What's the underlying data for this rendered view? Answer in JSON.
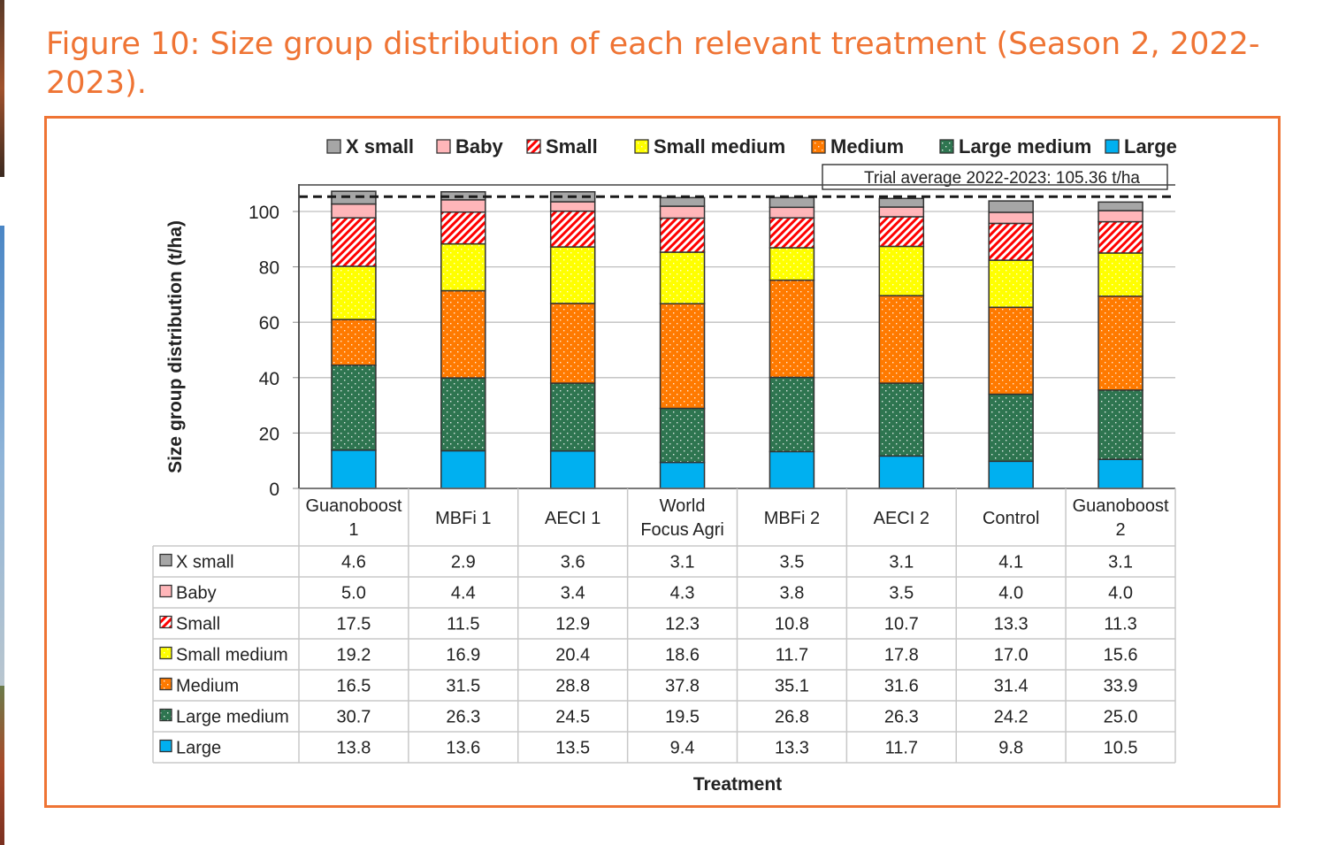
{
  "figure": {
    "title": "Figure 10: Size group distribution of each relevant treatment (Season 2, 2022-2023).",
    "accent_color": "#ef7434"
  },
  "chart_data": {
    "type": "bar",
    "stacked": true,
    "title": "Figure 10: Size group distribution of each relevant treatment (Season 2, 2022-2023).",
    "xlabel": "Treatment",
    "ylabel": "Size group distribution (t/ha)",
    "ylim": [
      0,
      110
    ],
    "yticks": [
      0,
      20,
      40,
      60,
      80,
      100
    ],
    "grid": true,
    "legend_position": "top",
    "categories": [
      [
        "Guanoboost",
        "1"
      ],
      [
        "MBFi 1"
      ],
      [
        "AECI 1"
      ],
      [
        "World",
        "Focus Agri"
      ],
      [
        "MBFi 2"
      ],
      [
        "AECI 2"
      ],
      [
        "Control"
      ],
      [
        "Guanoboost",
        "2"
      ]
    ],
    "series": [
      {
        "name": "Large",
        "color": "#00b0f0",
        "pattern": "solid",
        "values": [
          13.8,
          13.6,
          13.5,
          9.4,
          13.3,
          11.7,
          9.8,
          10.5
        ]
      },
      {
        "name": "Large medium",
        "color": "#2e7550",
        "pattern": "dots",
        "values": [
          30.7,
          26.3,
          24.5,
          19.5,
          26.8,
          26.3,
          24.2,
          25.0
        ]
      },
      {
        "name": "Medium",
        "color": "#ff7a00",
        "pattern": "dots",
        "values": [
          16.5,
          31.5,
          28.8,
          37.8,
          35.1,
          31.6,
          31.4,
          33.9
        ]
      },
      {
        "name": "Small medium",
        "color": "#ffff00",
        "pattern": "dots",
        "values": [
          19.2,
          16.9,
          20.4,
          18.6,
          11.7,
          17.8,
          17.0,
          15.6
        ]
      },
      {
        "name": "Small",
        "color": "#ff0000",
        "pattern": "stripes",
        "values": [
          17.5,
          11.5,
          12.9,
          12.3,
          10.8,
          10.7,
          13.3,
          11.3
        ]
      },
      {
        "name": "Baby",
        "color": "#ffb6b9",
        "pattern": "solid",
        "values": [
          5.0,
          4.4,
          3.4,
          4.3,
          3.8,
          3.5,
          4.0,
          4.0
        ]
      },
      {
        "name": "X small",
        "color": "#a6a6a6",
        "pattern": "solid",
        "values": [
          4.6,
          2.9,
          3.6,
          3.1,
          3.5,
          3.1,
          4.1,
          3.1
        ]
      }
    ],
    "legend_order": [
      "X small",
      "Baby",
      "Small",
      "Small medium",
      "Medium",
      "Large medium",
      "Large"
    ],
    "reference_line": {
      "value": 105.36,
      "style": "dashed",
      "label": "Trial average 2022-2023: 105.36 t/ha"
    },
    "data_table": {
      "row_order": [
        "X small",
        "Baby",
        "Small",
        "Small medium",
        "Medium",
        "Large medium",
        "Large"
      ],
      "formatted": {
        "X small": [
          "4.6",
          "2.9",
          "3.6",
          "3.1",
          "3.5",
          "3.1",
          "4.1",
          "3.1"
        ],
        "Baby": [
          "5.0",
          "4.4",
          "3.4",
          "4.3",
          "3.8",
          "3.5",
          "4.0",
          "4.0"
        ],
        "Small": [
          "17.5",
          "11.5",
          "12.9",
          "12.3",
          "10.8",
          "10.7",
          "13.3",
          "11.3"
        ],
        "Small medium": [
          "19.2",
          "16.9",
          "20.4",
          "18.6",
          "11.7",
          "17.8",
          "17.0",
          "15.6"
        ],
        "Medium": [
          "16.5",
          "31.5",
          "28.8",
          "37.8",
          "35.1",
          "31.6",
          "31.4",
          "33.9"
        ],
        "Large medium": [
          "30.7",
          "26.3",
          "24.5",
          "19.5",
          "26.8",
          "26.3",
          "24.2",
          "25.0"
        ],
        "Large": [
          "13.8",
          "13.6",
          "13.5",
          "9.4",
          "13.3",
          "11.7",
          "9.8",
          "10.5"
        ]
      }
    }
  }
}
